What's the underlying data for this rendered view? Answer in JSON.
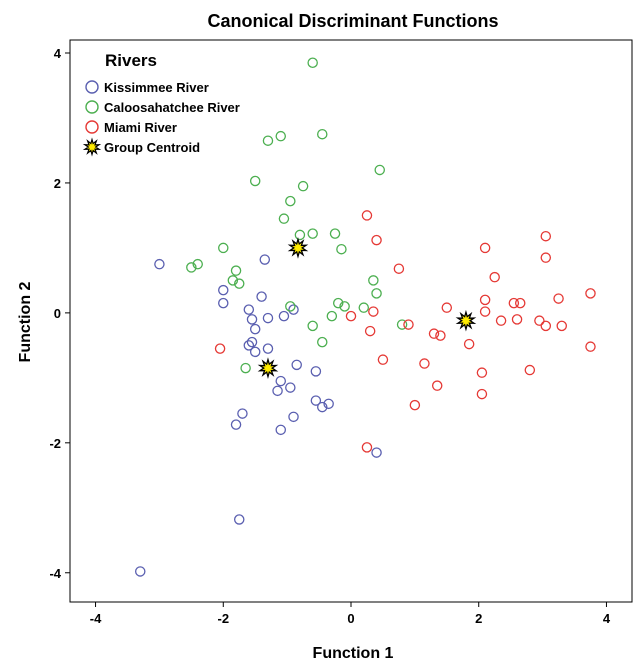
{
  "chart_data": {
    "type": "scatter",
    "title": "Canonical Discriminant Functions",
    "xlabel": "Function 1",
    "ylabel": "Function 2",
    "xlim": [
      -4.4,
      4.4
    ],
    "ylim": [
      -4.45,
      4.2
    ],
    "xticks": [
      -4,
      -2,
      0,
      2,
      4
    ],
    "yticks": [
      -4,
      -2,
      0,
      2,
      4
    ],
    "grid": false,
    "legend_placement": "top-left",
    "legend_title": "Rivers",
    "series": [
      {
        "name": "Kissimmee River",
        "color": "#5a5fb0",
        "marker": "open-circle",
        "points": [
          [
            -3.0,
            0.75
          ],
          [
            -2.0,
            0.35
          ],
          [
            -2.0,
            0.15
          ],
          [
            -1.35,
            0.82
          ],
          [
            -1.4,
            0.25
          ],
          [
            -1.6,
            0.05
          ],
          [
            -1.55,
            -0.1
          ],
          [
            -1.5,
            -0.25
          ],
          [
            -1.3,
            -0.08
          ],
          [
            -1.05,
            -0.05
          ],
          [
            -0.9,
            0.05
          ],
          [
            -1.55,
            -0.45
          ],
          [
            -1.6,
            -0.5
          ],
          [
            -1.5,
            -0.6
          ],
          [
            -1.3,
            -0.55
          ],
          [
            -0.85,
            -0.8
          ],
          [
            -0.55,
            -0.9
          ],
          [
            -1.1,
            -1.05
          ],
          [
            -1.15,
            -1.2
          ],
          [
            -0.95,
            -1.15
          ],
          [
            -0.55,
            -1.35
          ],
          [
            -0.45,
            -1.45
          ],
          [
            -0.35,
            -1.4
          ],
          [
            -0.9,
            -1.6
          ],
          [
            -1.7,
            -1.55
          ],
          [
            -1.8,
            -1.72
          ],
          [
            -1.1,
            -1.8
          ],
          [
            0.4,
            -2.15
          ],
          [
            -1.75,
            -3.18
          ],
          [
            -3.3,
            -3.98
          ]
        ]
      },
      {
        "name": "Caloosahatchee River",
        "color": "#4caf50",
        "marker": "open-circle",
        "points": [
          [
            -0.6,
            3.85
          ],
          [
            -1.1,
            2.72
          ],
          [
            -1.3,
            2.65
          ],
          [
            -0.45,
            2.75
          ],
          [
            0.45,
            2.2
          ],
          [
            -1.5,
            2.03
          ],
          [
            -0.75,
            1.95
          ],
          [
            -0.95,
            1.72
          ],
          [
            -1.05,
            1.45
          ],
          [
            -0.8,
            1.2
          ],
          [
            -0.6,
            1.22
          ],
          [
            -0.25,
            1.22
          ],
          [
            -0.15,
            0.98
          ],
          [
            -2.0,
            1.0
          ],
          [
            -2.4,
            0.75
          ],
          [
            -2.5,
            0.7
          ],
          [
            -1.8,
            0.65
          ],
          [
            -1.85,
            0.5
          ],
          [
            -1.75,
            0.45
          ],
          [
            0.35,
            0.5
          ],
          [
            0.4,
            0.3
          ],
          [
            -0.2,
            0.15
          ],
          [
            -0.1,
            0.1
          ],
          [
            0.2,
            0.08
          ],
          [
            -0.95,
            0.1
          ],
          [
            -0.3,
            -0.05
          ],
          [
            -0.6,
            -0.2
          ],
          [
            0.8,
            -0.18
          ],
          [
            -0.45,
            -0.45
          ],
          [
            -1.65,
            -0.85
          ]
        ]
      },
      {
        "name": "Miami River",
        "color": "#e53935",
        "marker": "open-circle",
        "points": [
          [
            0.25,
            1.5
          ],
          [
            0.4,
            1.12
          ],
          [
            2.1,
            1.0
          ],
          [
            3.05,
            1.18
          ],
          [
            3.05,
            0.85
          ],
          [
            0.75,
            0.68
          ],
          [
            2.25,
            0.55
          ],
          [
            2.1,
            0.2
          ],
          [
            3.25,
            0.22
          ],
          [
            3.75,
            0.3
          ],
          [
            2.55,
            0.15
          ],
          [
            2.65,
            0.15
          ],
          [
            1.5,
            0.08
          ],
          [
            2.1,
            0.02
          ],
          [
            0.35,
            0.02
          ],
          [
            0.0,
            -0.05
          ],
          [
            0.9,
            -0.18
          ],
          [
            2.35,
            -0.12
          ],
          [
            2.6,
            -0.1
          ],
          [
            2.95,
            -0.12
          ],
          [
            3.05,
            -0.2
          ],
          [
            3.3,
            -0.2
          ],
          [
            0.3,
            -0.28
          ],
          [
            1.3,
            -0.32
          ],
          [
            1.4,
            -0.35
          ],
          [
            1.85,
            -0.48
          ],
          [
            3.75,
            -0.52
          ],
          [
            -2.05,
            -0.55
          ],
          [
            0.5,
            -0.72
          ],
          [
            1.15,
            -0.78
          ],
          [
            2.05,
            -0.92
          ],
          [
            2.8,
            -0.88
          ],
          [
            1.35,
            -1.12
          ],
          [
            2.05,
            -1.25
          ],
          [
            1.0,
            -1.42
          ],
          [
            0.25,
            -2.07
          ]
        ]
      },
      {
        "name": "Group Centroid",
        "color": "#ffeb00",
        "marker": "star",
        "points": [
          [
            -0.83,
            1.0
          ],
          [
            -1.3,
            -0.85
          ],
          [
            1.8,
            -0.12
          ]
        ]
      }
    ]
  }
}
